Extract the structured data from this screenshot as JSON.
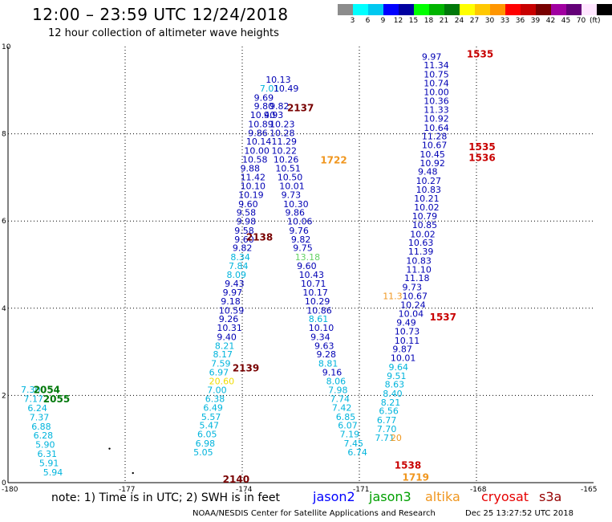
{
  "header": {
    "title": "12:00 – 23:59 UTC 12/24/2018",
    "subtitle": "12 hour collection of altimeter wave heights"
  },
  "legend": {
    "colors": [
      "#8c8c8c",
      "#00ffff",
      "#00c8f0",
      "#0000ff",
      "#0000a0",
      "#00ff00",
      "#00b400",
      "#00780a",
      "#ffff00",
      "#ffc800",
      "#ff9600",
      "#ff0000",
      "#c80000",
      "#780000",
      "#a000a0",
      "#640078",
      "#ffe6ff",
      "#000000"
    ],
    "labels": [
      "3",
      "6",
      "9",
      "12",
      "15",
      "18",
      "21",
      "24",
      "27",
      "30",
      "33",
      "36",
      "39",
      "42",
      "45",
      "70"
    ],
    "unit": "(ft)"
  },
  "map_data": {
    "x_axis": {
      "min": -180,
      "max": -165,
      "labels": [
        "-180",
        "-177",
        "-174",
        "-171",
        "-168",
        "-165"
      ]
    },
    "y_axis": {
      "min": 0,
      "max": 10,
      "labels": [
        "0",
        "2",
        "4",
        "6",
        "8",
        "10"
      ]
    },
    "colors": {
      "j2": "#0000b4",
      "j3c": "#00b4dc",
      "j3": "#00a0f0",
      "yl": "#f0dc00",
      "gn": "#64d264",
      "or": "#f0961e",
      "dr": "#780000",
      "rd": "#c80000",
      "dg": "#00780a"
    },
    "observations": [
      {
        "lon": -179.67,
        "lat": 2.06,
        "v": "7.30",
        "c": "j3c"
      },
      {
        "lon": -179.6,
        "lat": 1.85,
        "v": "7.17",
        "c": "j3c"
      },
      {
        "lon": -179.5,
        "lat": 1.64,
        "v": "6.24",
        "c": "j3c"
      },
      {
        "lon": -179.45,
        "lat": 1.43,
        "v": "7.37",
        "c": "j3c"
      },
      {
        "lon": -179.4,
        "lat": 1.22,
        "v": "6.88",
        "c": "j3c"
      },
      {
        "lon": -179.35,
        "lat": 1.01,
        "v": "6.28",
        "c": "j3c"
      },
      {
        "lon": -179.3,
        "lat": 0.8,
        "v": "5.90",
        "c": "j3c"
      },
      {
        "lon": -179.25,
        "lat": 0.59,
        "v": "6.31",
        "c": "j3c"
      },
      {
        "lon": -179.2,
        "lat": 0.38,
        "v": "5.91",
        "c": "j3c"
      },
      {
        "lon": -179.1,
        "lat": 0.17,
        "v": "5.94",
        "c": "j3c"
      },
      {
        "lon": -173.4,
        "lat": 9.17,
        "v": "10.13",
        "c": "j2"
      },
      {
        "lon": -173.55,
        "lat": 8.97,
        "v": "7.01",
        "c": "j3c"
      },
      {
        "lon": -173.2,
        "lat": 8.97,
        "v": "10.49",
        "c": "j2"
      },
      {
        "lon": -173.7,
        "lat": 8.76,
        "v": "9.69",
        "c": "j2"
      },
      {
        "lon": -173.3,
        "lat": 8.56,
        "v": "9.82",
        "c": "j2"
      },
      {
        "lon": -173.7,
        "lat": 8.56,
        "v": "9.80",
        "c": "j2"
      },
      {
        "lon": -173.45,
        "lat": 8.36,
        "v": "9.93",
        "c": "j2"
      },
      {
        "lon": -173.8,
        "lat": 8.36,
        "v": "10.40",
        "c": "j2"
      },
      {
        "lon": -173.3,
        "lat": 8.15,
        "v": "10.23",
        "c": "j2"
      },
      {
        "lon": -173.85,
        "lat": 8.15,
        "v": "10.89",
        "c": "j2"
      },
      {
        "lon": -173.3,
        "lat": 7.95,
        "v": "10.28",
        "c": "j2"
      },
      {
        "lon": -173.85,
        "lat": 7.95,
        "v": "9.86",
        "c": "j2"
      },
      {
        "lon": -173.25,
        "lat": 7.75,
        "v": "11.29",
        "c": "j2"
      },
      {
        "lon": -173.9,
        "lat": 7.75,
        "v": "10.14",
        "c": "j2"
      },
      {
        "lon": -173.25,
        "lat": 7.54,
        "v": "10.22",
        "c": "j2"
      },
      {
        "lon": -173.95,
        "lat": 7.54,
        "v": "10.00",
        "c": "j2"
      },
      {
        "lon": -173.2,
        "lat": 7.34,
        "v": "10.26",
        "c": "j2"
      },
      {
        "lon": -174.0,
        "lat": 7.34,
        "v": "10.58",
        "c": "j2"
      },
      {
        "lon": -173.15,
        "lat": 7.14,
        "v": "10.51",
        "c": "j2"
      },
      {
        "lon": -174.05,
        "lat": 7.14,
        "v": "9.88",
        "c": "j2"
      },
      {
        "lon": -173.1,
        "lat": 6.93,
        "v": "10.50",
        "c": "j2"
      },
      {
        "lon": -174.05,
        "lat": 6.93,
        "v": "11.42",
        "c": "j2"
      },
      {
        "lon": -173.05,
        "lat": 6.73,
        "v": "10.01",
        "c": "j2"
      },
      {
        "lon": -174.05,
        "lat": 6.73,
        "v": "10.10",
        "c": "j2"
      },
      {
        "lon": -173.0,
        "lat": 6.53,
        "v": "9.73",
        "c": "j2"
      },
      {
        "lon": -174.1,
        "lat": 6.53,
        "v": "10.19",
        "c": "j2"
      },
      {
        "lon": -172.95,
        "lat": 6.32,
        "v": "10.30",
        "c": "j2"
      },
      {
        "lon": -174.1,
        "lat": 6.32,
        "v": "9.60",
        "c": "j2"
      },
      {
        "lon": -172.9,
        "lat": 6.12,
        "v": "9.86",
        "c": "j2"
      },
      {
        "lon": -174.15,
        "lat": 6.12,
        "v": "9.58",
        "c": "j2"
      },
      {
        "lon": -172.85,
        "lat": 5.92,
        "v": "10.06",
        "c": "j2"
      },
      {
        "lon": -174.15,
        "lat": 5.92,
        "v": "9.98",
        "c": "j2"
      },
      {
        "lon": -172.8,
        "lat": 5.71,
        "v": "9.76",
        "c": "j2"
      },
      {
        "lon": -174.2,
        "lat": 5.71,
        "v": "9.58",
        "c": "j2"
      },
      {
        "lon": -172.75,
        "lat": 5.51,
        "v": "9.82",
        "c": "j2"
      },
      {
        "lon": -174.2,
        "lat": 5.51,
        "v": "9.60",
        "c": "j2"
      },
      {
        "lon": -172.7,
        "lat": 5.31,
        "v": "9.75",
        "c": "j2"
      },
      {
        "lon": -174.25,
        "lat": 5.31,
        "v": "9.82",
        "c": "j2"
      },
      {
        "lon": -172.65,
        "lat": 5.1,
        "v": "13.18",
        "c": "gn"
      },
      {
        "lon": -174.3,
        "lat": 5.1,
        "v": "8.34",
        "c": "j3c"
      },
      {
        "lon": -172.6,
        "lat": 4.9,
        "v": "9.60",
        "c": "j2"
      },
      {
        "lon": -174.35,
        "lat": 4.9,
        "v": "7.84",
        "c": "j3c"
      },
      {
        "lon": -172.55,
        "lat": 4.7,
        "v": "10.43",
        "c": "j2"
      },
      {
        "lon": -174.4,
        "lat": 4.7,
        "v": "8.09",
        "c": "j3c"
      },
      {
        "lon": -172.5,
        "lat": 4.49,
        "v": "10.71",
        "c": "j2"
      },
      {
        "lon": -174.45,
        "lat": 4.49,
        "v": "9.43",
        "c": "j2"
      },
      {
        "lon": -172.45,
        "lat": 4.29,
        "v": "10.17",
        "c": "j2"
      },
      {
        "lon": -174.5,
        "lat": 4.29,
        "v": "9.97",
        "c": "j2"
      },
      {
        "lon": -172.4,
        "lat": 4.09,
        "v": "10.29",
        "c": "j2"
      },
      {
        "lon": -174.55,
        "lat": 4.09,
        "v": "9.18",
        "c": "j2"
      },
      {
        "lon": -172.35,
        "lat": 3.88,
        "v": "10.86",
        "c": "j2"
      },
      {
        "lon": -174.6,
        "lat": 3.88,
        "v": "10.59",
        "c": "j2"
      },
      {
        "lon": -172.3,
        "lat": 3.68,
        "v": "8.61",
        "c": "j3c"
      },
      {
        "lon": -174.6,
        "lat": 3.68,
        "v": "9.26",
        "c": "j2"
      },
      {
        "lon": -172.3,
        "lat": 3.48,
        "v": "10.10",
        "c": "j2"
      },
      {
        "lon": -174.65,
        "lat": 3.48,
        "v": "10.31",
        "c": "j2"
      },
      {
        "lon": -172.25,
        "lat": 3.27,
        "v": "9.34",
        "c": "j2"
      },
      {
        "lon": -174.65,
        "lat": 3.27,
        "v": "9.40",
        "c": "j2"
      },
      {
        "lon": -172.15,
        "lat": 3.07,
        "v": "9.63",
        "c": "j2"
      },
      {
        "lon": -174.7,
        "lat": 3.07,
        "v": "8.21",
        "c": "j3c"
      },
      {
        "lon": -172.1,
        "lat": 2.87,
        "v": "9.28",
        "c": "j2"
      },
      {
        "lon": -174.75,
        "lat": 2.87,
        "v": "8.17",
        "c": "j3c"
      },
      {
        "lon": -172.05,
        "lat": 2.66,
        "v": "8.81",
        "c": "j3c"
      },
      {
        "lon": -174.8,
        "lat": 2.66,
        "v": "7.59",
        "c": "j3c"
      },
      {
        "lon": -171.95,
        "lat": 2.46,
        "v": "9.16",
        "c": "j2"
      },
      {
        "lon": -174.85,
        "lat": 2.46,
        "v": "6.97",
        "c": "j3c"
      },
      {
        "lon": -171.85,
        "lat": 2.26,
        "v": "8.06",
        "c": "j3c"
      },
      {
        "lon": -174.85,
        "lat": 2.26,
        "v": "20.60",
        "c": "yl"
      },
      {
        "lon": -171.8,
        "lat": 2.05,
        "v": "7.98",
        "c": "j3c"
      },
      {
        "lon": -174.9,
        "lat": 2.05,
        "v": "7.00",
        "c": "j3c"
      },
      {
        "lon": -171.75,
        "lat": 1.85,
        "v": "7.74",
        "c": "j3c"
      },
      {
        "lon": -174.95,
        "lat": 1.85,
        "v": "6.38",
        "c": "j3c"
      },
      {
        "lon": -171.7,
        "lat": 1.65,
        "v": "7.42",
        "c": "j3c"
      },
      {
        "lon": -175.0,
        "lat": 1.65,
        "v": "6.49",
        "c": "j3c"
      },
      {
        "lon": -171.6,
        "lat": 1.44,
        "v": "6.85",
        "c": "j3c"
      },
      {
        "lon": -175.05,
        "lat": 1.44,
        "v": "5.57",
        "c": "j3c"
      },
      {
        "lon": -171.55,
        "lat": 1.24,
        "v": "6.07",
        "c": "j3c"
      },
      {
        "lon": -175.1,
        "lat": 1.24,
        "v": "5.47",
        "c": "j3c"
      },
      {
        "lon": -171.5,
        "lat": 1.04,
        "v": "7.19",
        "c": "j3c"
      },
      {
        "lon": -175.15,
        "lat": 1.04,
        "v": "6.05",
        "c": "j3c"
      },
      {
        "lon": -171.4,
        "lat": 0.83,
        "v": "7.45",
        "c": "j3c"
      },
      {
        "lon": -175.2,
        "lat": 0.83,
        "v": "6.98",
        "c": "j3c"
      },
      {
        "lon": -171.3,
        "lat": 0.63,
        "v": "6.74",
        "c": "j3c"
      },
      {
        "lon": -175.25,
        "lat": 0.63,
        "v": "5.05",
        "c": "j3c"
      },
      {
        "lon": -169.4,
        "lat": 9.7,
        "v": "9.97",
        "c": "j2"
      },
      {
        "lon": -169.35,
        "lat": 9.5,
        "v": "11.34",
        "c": "j2"
      },
      {
        "lon": -169.35,
        "lat": 9.29,
        "v": "10.75",
        "c": "j2"
      },
      {
        "lon": -169.35,
        "lat": 9.09,
        "v": "10.74",
        "c": "j2"
      },
      {
        "lon": -169.35,
        "lat": 8.89,
        "v": "10.00",
        "c": "j2"
      },
      {
        "lon": -169.35,
        "lat": 8.68,
        "v": "10.36",
        "c": "j2"
      },
      {
        "lon": -169.35,
        "lat": 8.48,
        "v": "11.33",
        "c": "j2"
      },
      {
        "lon": -169.35,
        "lat": 8.28,
        "v": "10.92",
        "c": "j2"
      },
      {
        "lon": -169.35,
        "lat": 8.07,
        "v": "10.64",
        "c": "j2"
      },
      {
        "lon": -169.4,
        "lat": 7.87,
        "v": "11.28",
        "c": "j2"
      },
      {
        "lon": -169.4,
        "lat": 7.67,
        "v": "10.67",
        "c": "j2"
      },
      {
        "lon": -169.45,
        "lat": 7.46,
        "v": "10.45",
        "c": "j2"
      },
      {
        "lon": -169.45,
        "lat": 7.26,
        "v": "10.92",
        "c": "j2"
      },
      {
        "lon": -169.5,
        "lat": 7.06,
        "v": "9.48",
        "c": "j2"
      },
      {
        "lon": -169.55,
        "lat": 6.85,
        "v": "10.27",
        "c": "j2"
      },
      {
        "lon": -169.55,
        "lat": 6.65,
        "v": "10.83",
        "c": "j2"
      },
      {
        "lon": -169.6,
        "lat": 6.45,
        "v": "10.21",
        "c": "j2"
      },
      {
        "lon": -169.6,
        "lat": 6.24,
        "v": "10.02",
        "c": "j2"
      },
      {
        "lon": -169.65,
        "lat": 6.04,
        "v": "10.79",
        "c": "j2"
      },
      {
        "lon": -169.65,
        "lat": 5.84,
        "v": "10.85",
        "c": "j2"
      },
      {
        "lon": -169.7,
        "lat": 5.63,
        "v": "10.02",
        "c": "j2"
      },
      {
        "lon": -169.75,
        "lat": 5.43,
        "v": "10.63",
        "c": "j2"
      },
      {
        "lon": -169.75,
        "lat": 5.23,
        "v": "11.39",
        "c": "j2"
      },
      {
        "lon": -169.8,
        "lat": 5.02,
        "v": "10.83",
        "c": "j2"
      },
      {
        "lon": -169.8,
        "lat": 4.82,
        "v": "11.10",
        "c": "j2"
      },
      {
        "lon": -169.85,
        "lat": 4.62,
        "v": "11.18",
        "c": "j2"
      },
      {
        "lon": -169.9,
        "lat": 4.41,
        "v": "9.73",
        "c": "j2"
      },
      {
        "lon": -170.4,
        "lat": 4.21,
        "v": "11.3",
        "c": "or"
      },
      {
        "lon": -169.9,
        "lat": 4.21,
        "v": "10.67",
        "c": "j2"
      },
      {
        "lon": -169.95,
        "lat": 4.01,
        "v": "10.24",
        "c": "j2"
      },
      {
        "lon": -170.0,
        "lat": 3.8,
        "v": "10.04",
        "c": "j2"
      },
      {
        "lon": -170.05,
        "lat": 3.6,
        "v": "9.49",
        "c": "j2"
      },
      {
        "lon": -170.1,
        "lat": 3.4,
        "v": "10.73",
        "c": "j2"
      },
      {
        "lon": -170.1,
        "lat": 3.19,
        "v": "10.11",
        "c": "j2"
      },
      {
        "lon": -170.15,
        "lat": 2.99,
        "v": "9.87",
        "c": "j2"
      },
      {
        "lon": -170.2,
        "lat": 2.79,
        "v": "10.01",
        "c": "j2"
      },
      {
        "lon": -170.25,
        "lat": 2.58,
        "v": "9.64",
        "c": "j3c"
      },
      {
        "lon": -170.3,
        "lat": 2.38,
        "v": "9.51",
        "c": "j3c"
      },
      {
        "lon": -170.35,
        "lat": 2.18,
        "v": "8.63",
        "c": "j3c"
      },
      {
        "lon": -170.4,
        "lat": 1.97,
        "v": "8.40",
        "c": "j3c"
      },
      {
        "lon": -170.45,
        "lat": 1.77,
        "v": "8.21",
        "c": "j3c"
      },
      {
        "lon": -170.5,
        "lat": 1.57,
        "v": "6.56",
        "c": "j3c"
      },
      {
        "lon": -170.55,
        "lat": 1.36,
        "v": "6.77",
        "c": "j3c"
      },
      {
        "lon": -170.55,
        "lat": 1.16,
        "v": "7.70",
        "c": "j3c"
      },
      {
        "lon": -170.6,
        "lat": 0.96,
        "v": "7.71",
        "c": "j3c"
      },
      {
        "lon": -170.2,
        "lat": 0.96,
        "v": "20",
        "c": "or"
      }
    ],
    "pass_labels": [
      {
        "lon": -179.35,
        "lat": 2.05,
        "v": "2054",
        "c": "dg"
      },
      {
        "lon": -179.1,
        "lat": 1.84,
        "v": "2055",
        "c": "dg"
      },
      {
        "lon": -172.85,
        "lat": 8.52,
        "v": "2137",
        "c": "dr"
      },
      {
        "lon": -172.0,
        "lat": 7.32,
        "v": "1722",
        "c": "or"
      },
      {
        "lon": -173.9,
        "lat": 5.55,
        "v": "2138",
        "c": "dr"
      },
      {
        "lon": -174.25,
        "lat": 2.55,
        "v": "2139",
        "c": "dr"
      },
      {
        "lon": -174.5,
        "lat": 0.0,
        "v": "2140",
        "c": "dr"
      },
      {
        "lon": -168.25,
        "lat": 9.75,
        "v": "1535",
        "c": "rd"
      },
      {
        "lon": -168.2,
        "lat": 7.62,
        "v": "1535",
        "c": "rd"
      },
      {
        "lon": -168.2,
        "lat": 7.38,
        "v": "1536",
        "c": "rd"
      },
      {
        "lon": -169.2,
        "lat": 3.72,
        "v": "1537",
        "c": "rd"
      },
      {
        "lon": -170.1,
        "lat": 0.32,
        "v": "1538",
        "c": "rd"
      },
      {
        "lon": -169.9,
        "lat": 0.05,
        "v": "1719",
        "c": "or"
      }
    ],
    "dots": [
      {
        "lon": -177.4,
        "lat": 0.78
      },
      {
        "lon": -176.8,
        "lat": 0.22
      }
    ]
  },
  "footer": {
    "note": "note:  1) Time is in UTC;  2) SWH is in feet",
    "missions": [
      {
        "label": "jason2",
        "color": "#0000ff"
      },
      {
        "label": "jason3",
        "color": "#00a000"
      },
      {
        "label": "altika",
        "color": "#f0961e"
      },
      {
        "label": "cryosat",
        "color": "#e60000"
      },
      {
        "label": "s3a",
        "color": "#960000"
      }
    ],
    "credit": "NOAA/NESDIS Center for Satellite Applications and Research",
    "timestamp": "Dec 25 13:27:52 UTC 2018"
  }
}
